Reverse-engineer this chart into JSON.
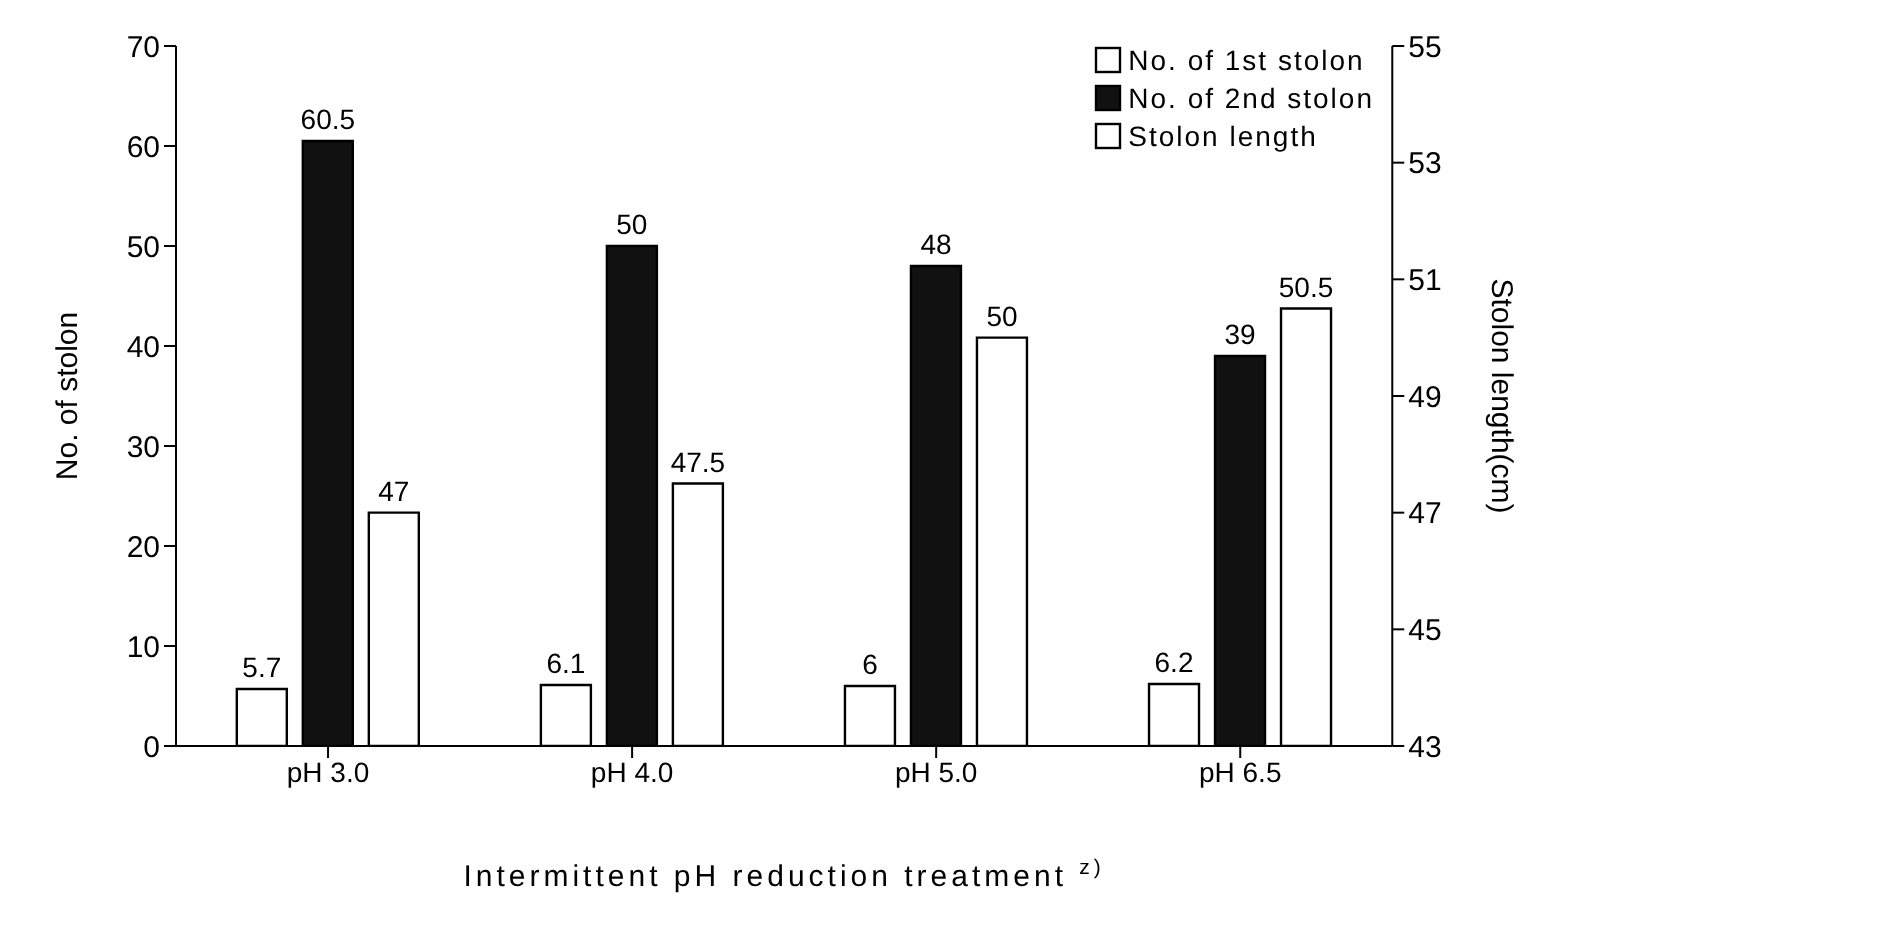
{
  "chart_data": {
    "type": "bar",
    "categories": [
      "pH 3.0",
      "pH 4.0",
      "pH 5.0",
      "pH 6.5"
    ],
    "xlabel": "Intermittent pH reduction treatment $^{z)}$",
    "ylabel": "No. of stolon",
    "y2label": "Stolon length(cm)",
    "series": [
      {
        "name": "No. of 1st stolon",
        "color": "#ffffff",
        "values": [
          5.7,
          6.1,
          6,
          6.2
        ]
      },
      {
        "name": "No. of 2nd stolon",
        "color": "#111111",
        "values": [
          60.5,
          50,
          48,
          39
        ]
      },
      {
        "name": "Stolon length",
        "color": "#ffffff",
        "values": [
          47,
          47.5,
          50,
          50.5
        ],
        "axis": "y2"
      }
    ],
    "ylim": [
      0,
      70
    ],
    "yticks": [
      0,
      10,
      20,
      30,
      40,
      50,
      60,
      70
    ],
    "y2lim": [
      43,
      55
    ],
    "y2ticks": [
      43,
      45,
      47,
      49,
      51,
      53,
      55
    ],
    "data_labels": true,
    "legend": "top right",
    "grid": false
  }
}
